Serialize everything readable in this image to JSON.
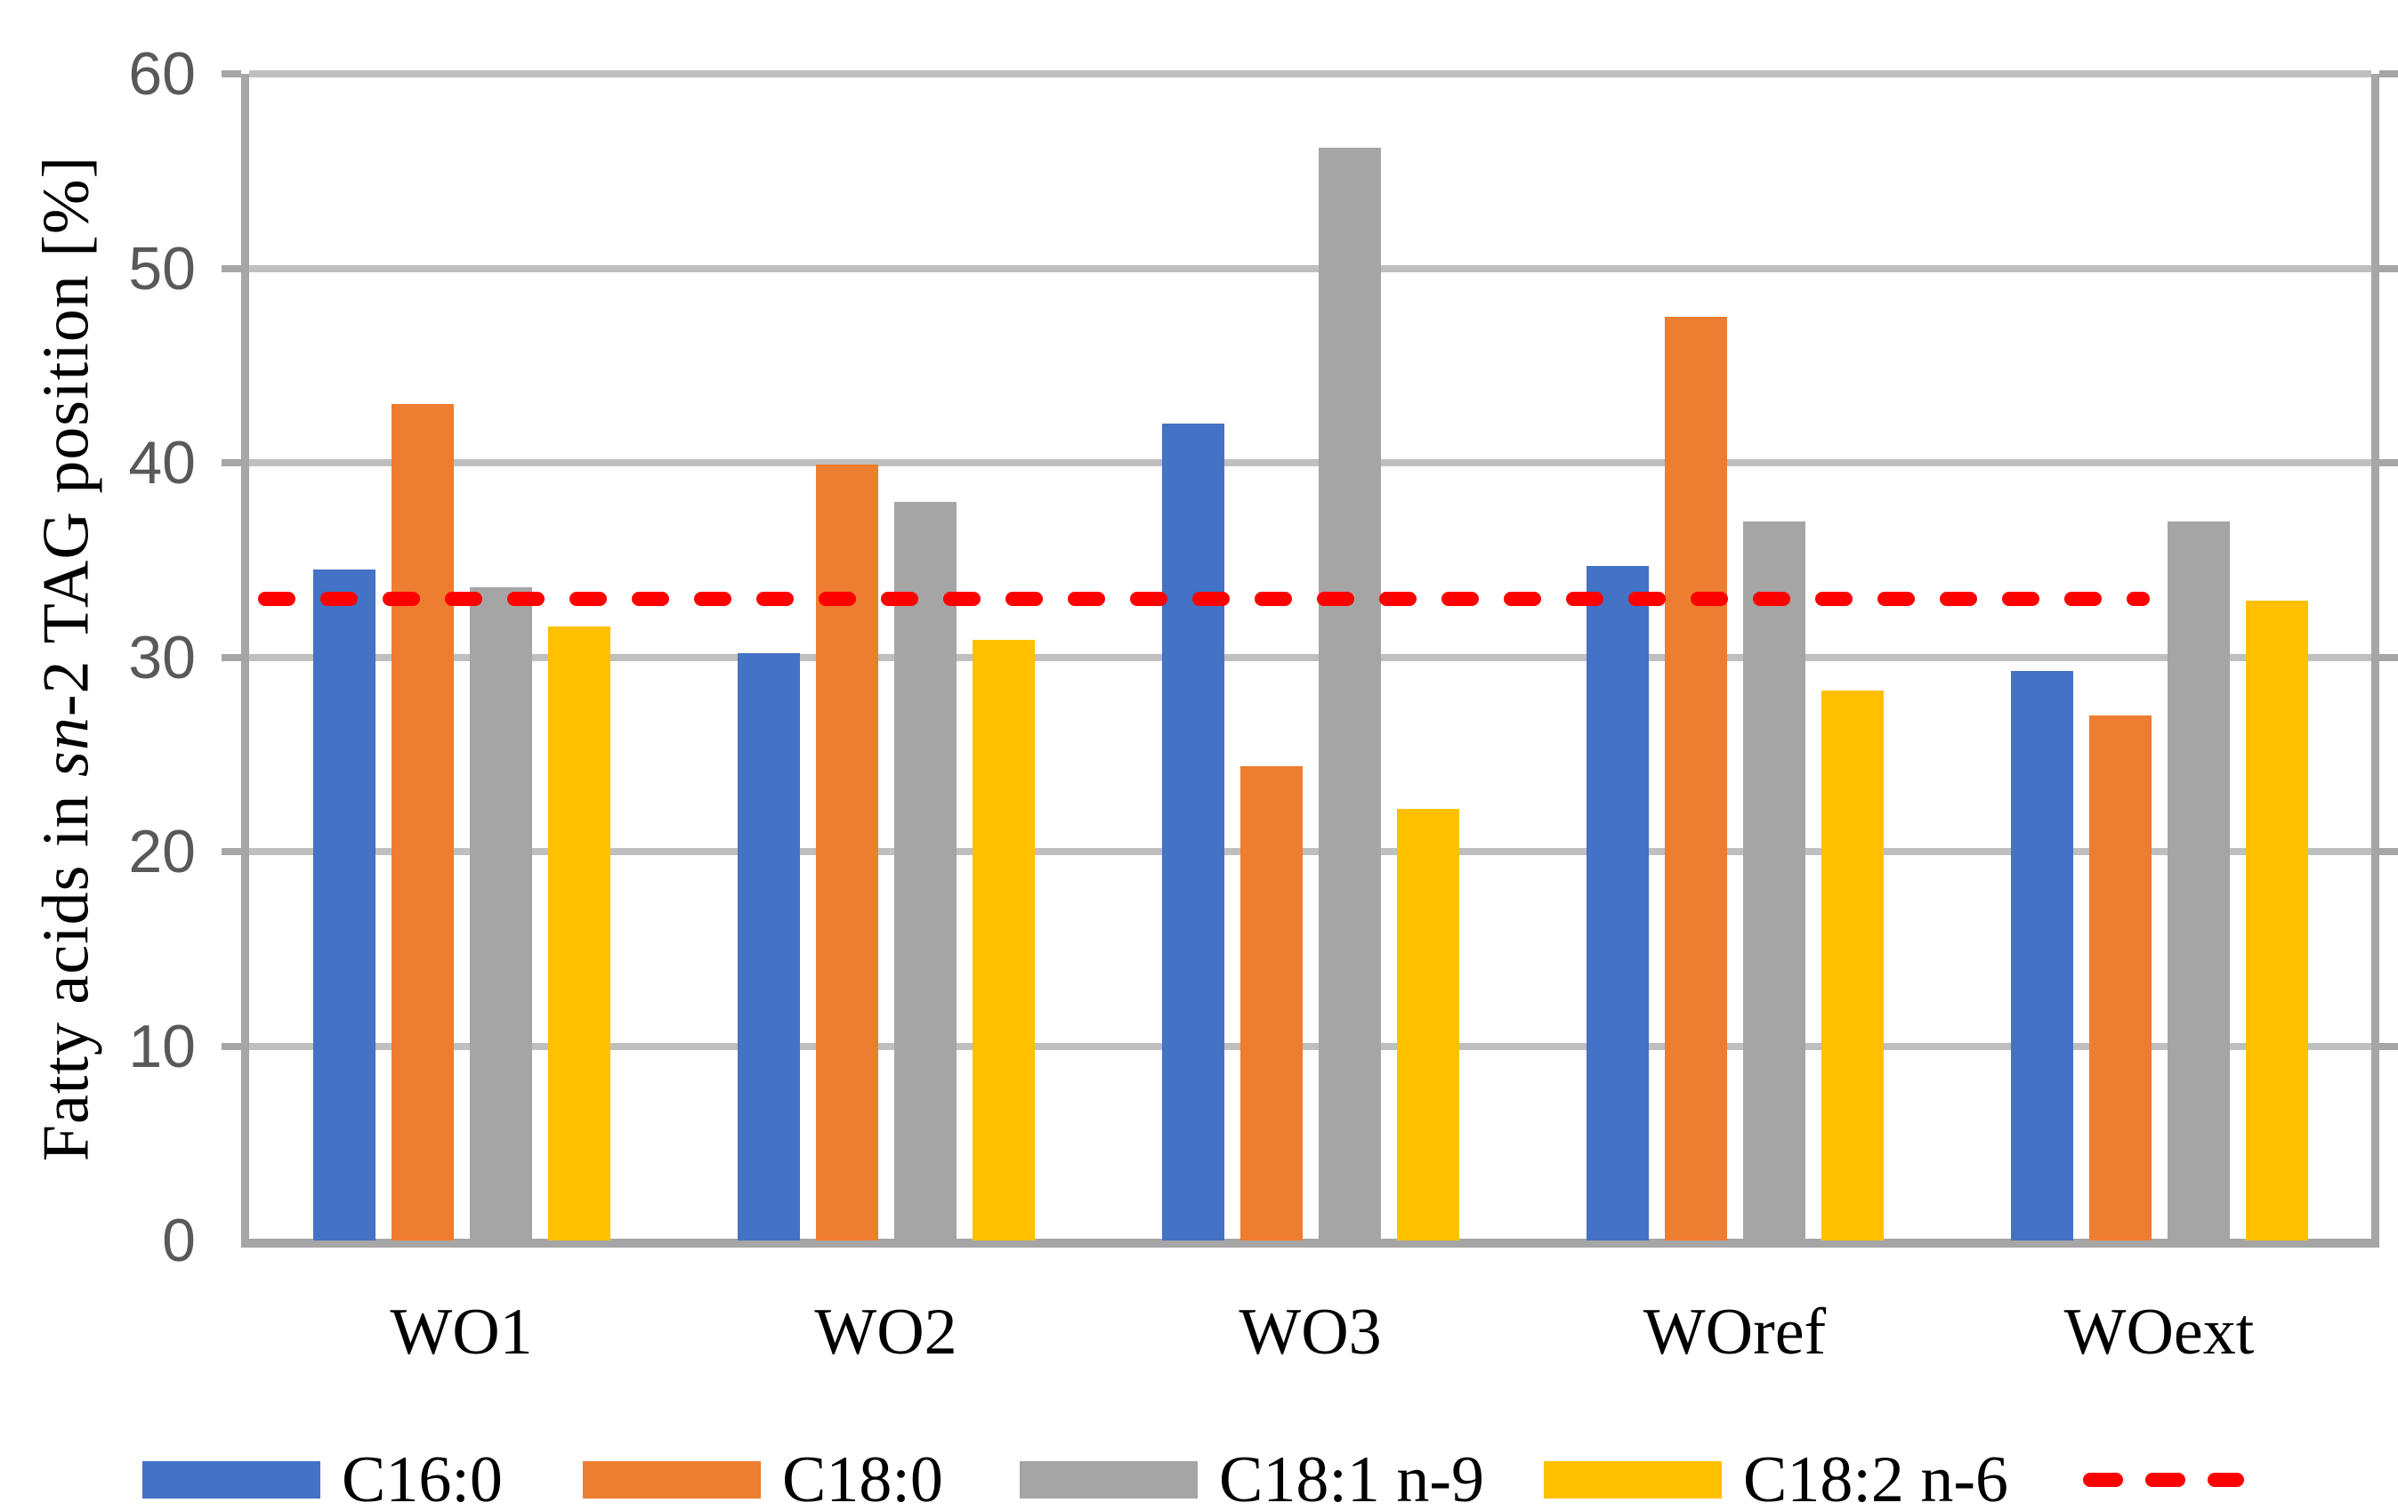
{
  "chart_data": {
    "type": "bar",
    "title": "",
    "categories": [
      "WO1",
      "WO2",
      "WO3",
      "WOref",
      "WOext"
    ],
    "series": [
      {
        "name": "C16:0",
        "color": "#4472C4",
        "values": [
          34.5,
          30.2,
          42.0,
          34.7,
          29.3
        ]
      },
      {
        "name": "C18:0",
        "color": "#ED7D31",
        "values": [
          43.0,
          39.9,
          24.4,
          47.5,
          27.0
        ]
      },
      {
        "name": "C18:1 n-9",
        "color": "#A5A5A5",
        "values": [
          33.6,
          38.0,
          56.2,
          37.0,
          37.0
        ]
      },
      {
        "name": "C18:2 n-6",
        "color": "#FFC000",
        "values": [
          31.6,
          30.9,
          22.2,
          28.3,
          32.9
        ]
      }
    ],
    "reference_line": {
      "value": 33.0,
      "color": "#FF0000",
      "style": "dashed"
    },
    "ylabel_parts": {
      "prefix": "Fatty acids in ",
      "italic": "sn",
      "suffix": "-2 TAG position [%]"
    },
    "ylim": [
      0,
      60
    ],
    "yticks": [
      60,
      50,
      40,
      30,
      20,
      10,
      0
    ],
    "grid": true,
    "legend_position": "bottom"
  },
  "style_colors": {
    "gridline": "#BFBFBF",
    "axis": "#A6A6A6",
    "value_axis_text": "#595959",
    "category_text": "#000000"
  }
}
